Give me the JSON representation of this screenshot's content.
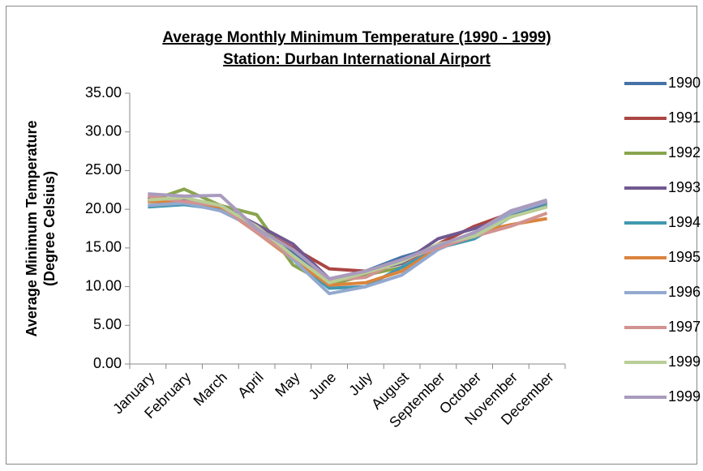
{
  "chart_data": {
    "type": "line",
    "title": [
      "Average Monthly Minimum Temperature (1990 - 1999)",
      "Station: Durban International Airport"
    ],
    "y_label": [
      "Average Minimum Temperature",
      "(Degree Celsius)"
    ],
    "categories": [
      "January",
      "February",
      "March",
      "April",
      "May",
      "June",
      "July",
      "August",
      "September",
      "October",
      "November",
      "December"
    ],
    "ylim": [
      0,
      35
    ],
    "yticks": [
      {
        "value": 0,
        "label": "0.00"
      },
      {
        "value": 5,
        "label": "5.00"
      },
      {
        "value": 10,
        "label": "10.00"
      },
      {
        "value": 15,
        "label": "15.00"
      },
      {
        "value": 20,
        "label": "20.00"
      },
      {
        "value": 25,
        "label": "25.00"
      },
      {
        "value": 30,
        "label": "30.00"
      },
      {
        "value": 35,
        "label": "35.00"
      }
    ],
    "grid": false,
    "legend": "right",
    "series": [
      {
        "name": "1990",
        "color": "#4572a7",
        "values": [
          21.0,
          21.0,
          20.3,
          18.0,
          14.5,
          10.5,
          12.0,
          13.8,
          15.2,
          17.0,
          19.0,
          20.5
        ]
      },
      {
        "name": "1991",
        "color": "#aa4643",
        "values": [
          21.5,
          21.0,
          20.5,
          17.5,
          15.0,
          12.3,
          12.0,
          13.0,
          15.5,
          17.8,
          19.5,
          20.8
        ]
      },
      {
        "name": "1992",
        "color": "#89a54e",
        "values": [
          21.0,
          22.6,
          20.5,
          19.3,
          12.8,
          10.2,
          11.5,
          12.5,
          15.0,
          16.8,
          19.2,
          20.8
        ]
      },
      {
        "name": "1993",
        "color": "#71588f",
        "values": [
          21.5,
          21.2,
          20.5,
          18.0,
          15.5,
          11.0,
          12.0,
          13.0,
          16.2,
          17.5,
          19.0,
          21.0
        ]
      },
      {
        "name": "1994",
        "color": "#4198af",
        "values": [
          20.3,
          20.6,
          20.0,
          17.5,
          13.5,
          9.8,
          10.0,
          12.5,
          15.0,
          16.2,
          19.0,
          20.5
        ]
      },
      {
        "name": "1995",
        "color": "#db843d",
        "values": [
          21.0,
          21.0,
          20.3,
          17.0,
          13.5,
          10.2,
          10.5,
          12.0,
          15.0,
          17.0,
          18.0,
          18.8
        ]
      },
      {
        "name": "1996",
        "color": "#93a9cf",
        "values": [
          20.5,
          20.8,
          19.8,
          17.5,
          13.5,
          9.1,
          10.0,
          11.5,
          14.8,
          16.8,
          19.5,
          21.0
        ]
      },
      {
        "name": "1997",
        "color": "#d19392",
        "values": [
          21.7,
          21.0,
          20.5,
          17.0,
          13.8,
          10.8,
          11.2,
          13.5,
          15.0,
          16.5,
          17.8,
          19.5
        ]
      },
      {
        "name": "1999",
        "color": "#b9cd96",
        "values": [
          21.2,
          21.5,
          20.5,
          17.8,
          14.0,
          10.5,
          11.8,
          13.2,
          15.5,
          16.5,
          19.0,
          20.3
        ]
      },
      {
        "name": "1999",
        "color": "#a99bbd",
        "values": [
          22.0,
          21.7,
          21.8,
          17.5,
          14.8,
          11.0,
          12.0,
          13.5,
          15.3,
          17.0,
          19.8,
          21.2
        ]
      }
    ]
  }
}
